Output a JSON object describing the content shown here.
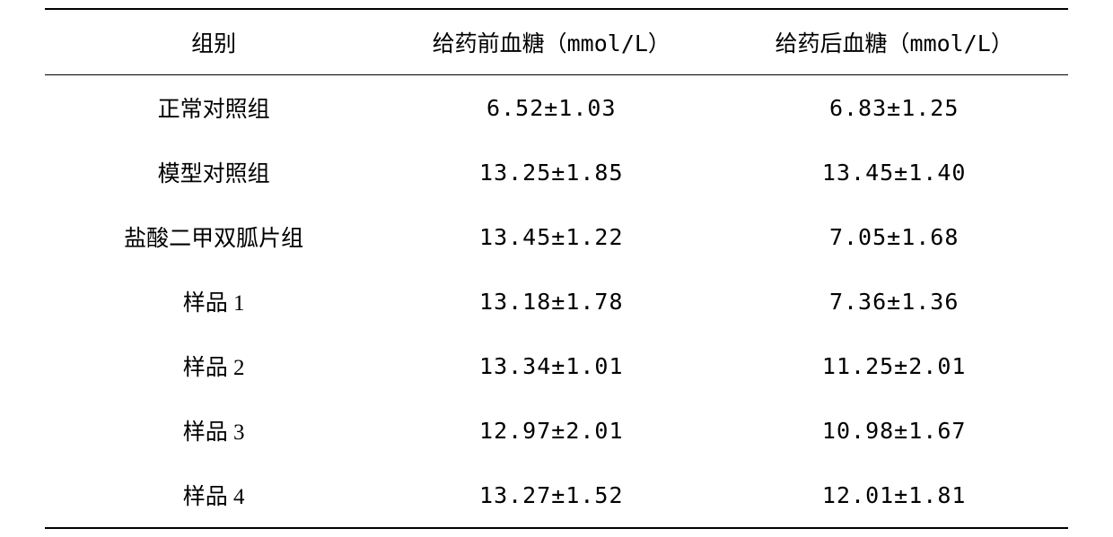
{
  "table": {
    "columns": [
      {
        "label": "组别",
        "unit": ""
      },
      {
        "label": "给药前血糖",
        "unit": "（mmol/L）"
      },
      {
        "label": "给药后血糖",
        "unit": "（mmol/L）"
      }
    ],
    "rows": [
      {
        "group": "正常对照组",
        "before": "6.52±1.03",
        "after": "6.83±1.25"
      },
      {
        "group": "模型对照组",
        "before": "13.25±1.85",
        "after": "13.45±1.40"
      },
      {
        "group": "盐酸二甲双胍片组",
        "before": "13.45±1.22",
        "after": "7.05±1.68"
      },
      {
        "group": "样品 1",
        "before": "13.18±1.78",
        "after": "7.36±1.36"
      },
      {
        "group": "样品 2",
        "before": "13.34±1.01",
        "after": "11.25±2.01"
      },
      {
        "group": "样品 3",
        "before": "12.97±2.01",
        "after": "10.98±1.67"
      },
      {
        "group": "样品 4",
        "before": "13.27±1.52",
        "after": "12.01±1.81"
      }
    ],
    "styling": {
      "background_color": "#ffffff",
      "text_color": "#000000",
      "border_color": "#000000",
      "header_font_family": "KaiTi",
      "group_font_family": "KaiTi",
      "value_font_family": "SimSun",
      "font_size_header": 25,
      "font_size_cell": 25,
      "top_border_width": 2,
      "header_bottom_border_width": 1.5,
      "bottom_border_width": 2,
      "cell_padding_vertical": 18,
      "col_widths_pct": [
        33,
        33,
        34
      ]
    }
  }
}
